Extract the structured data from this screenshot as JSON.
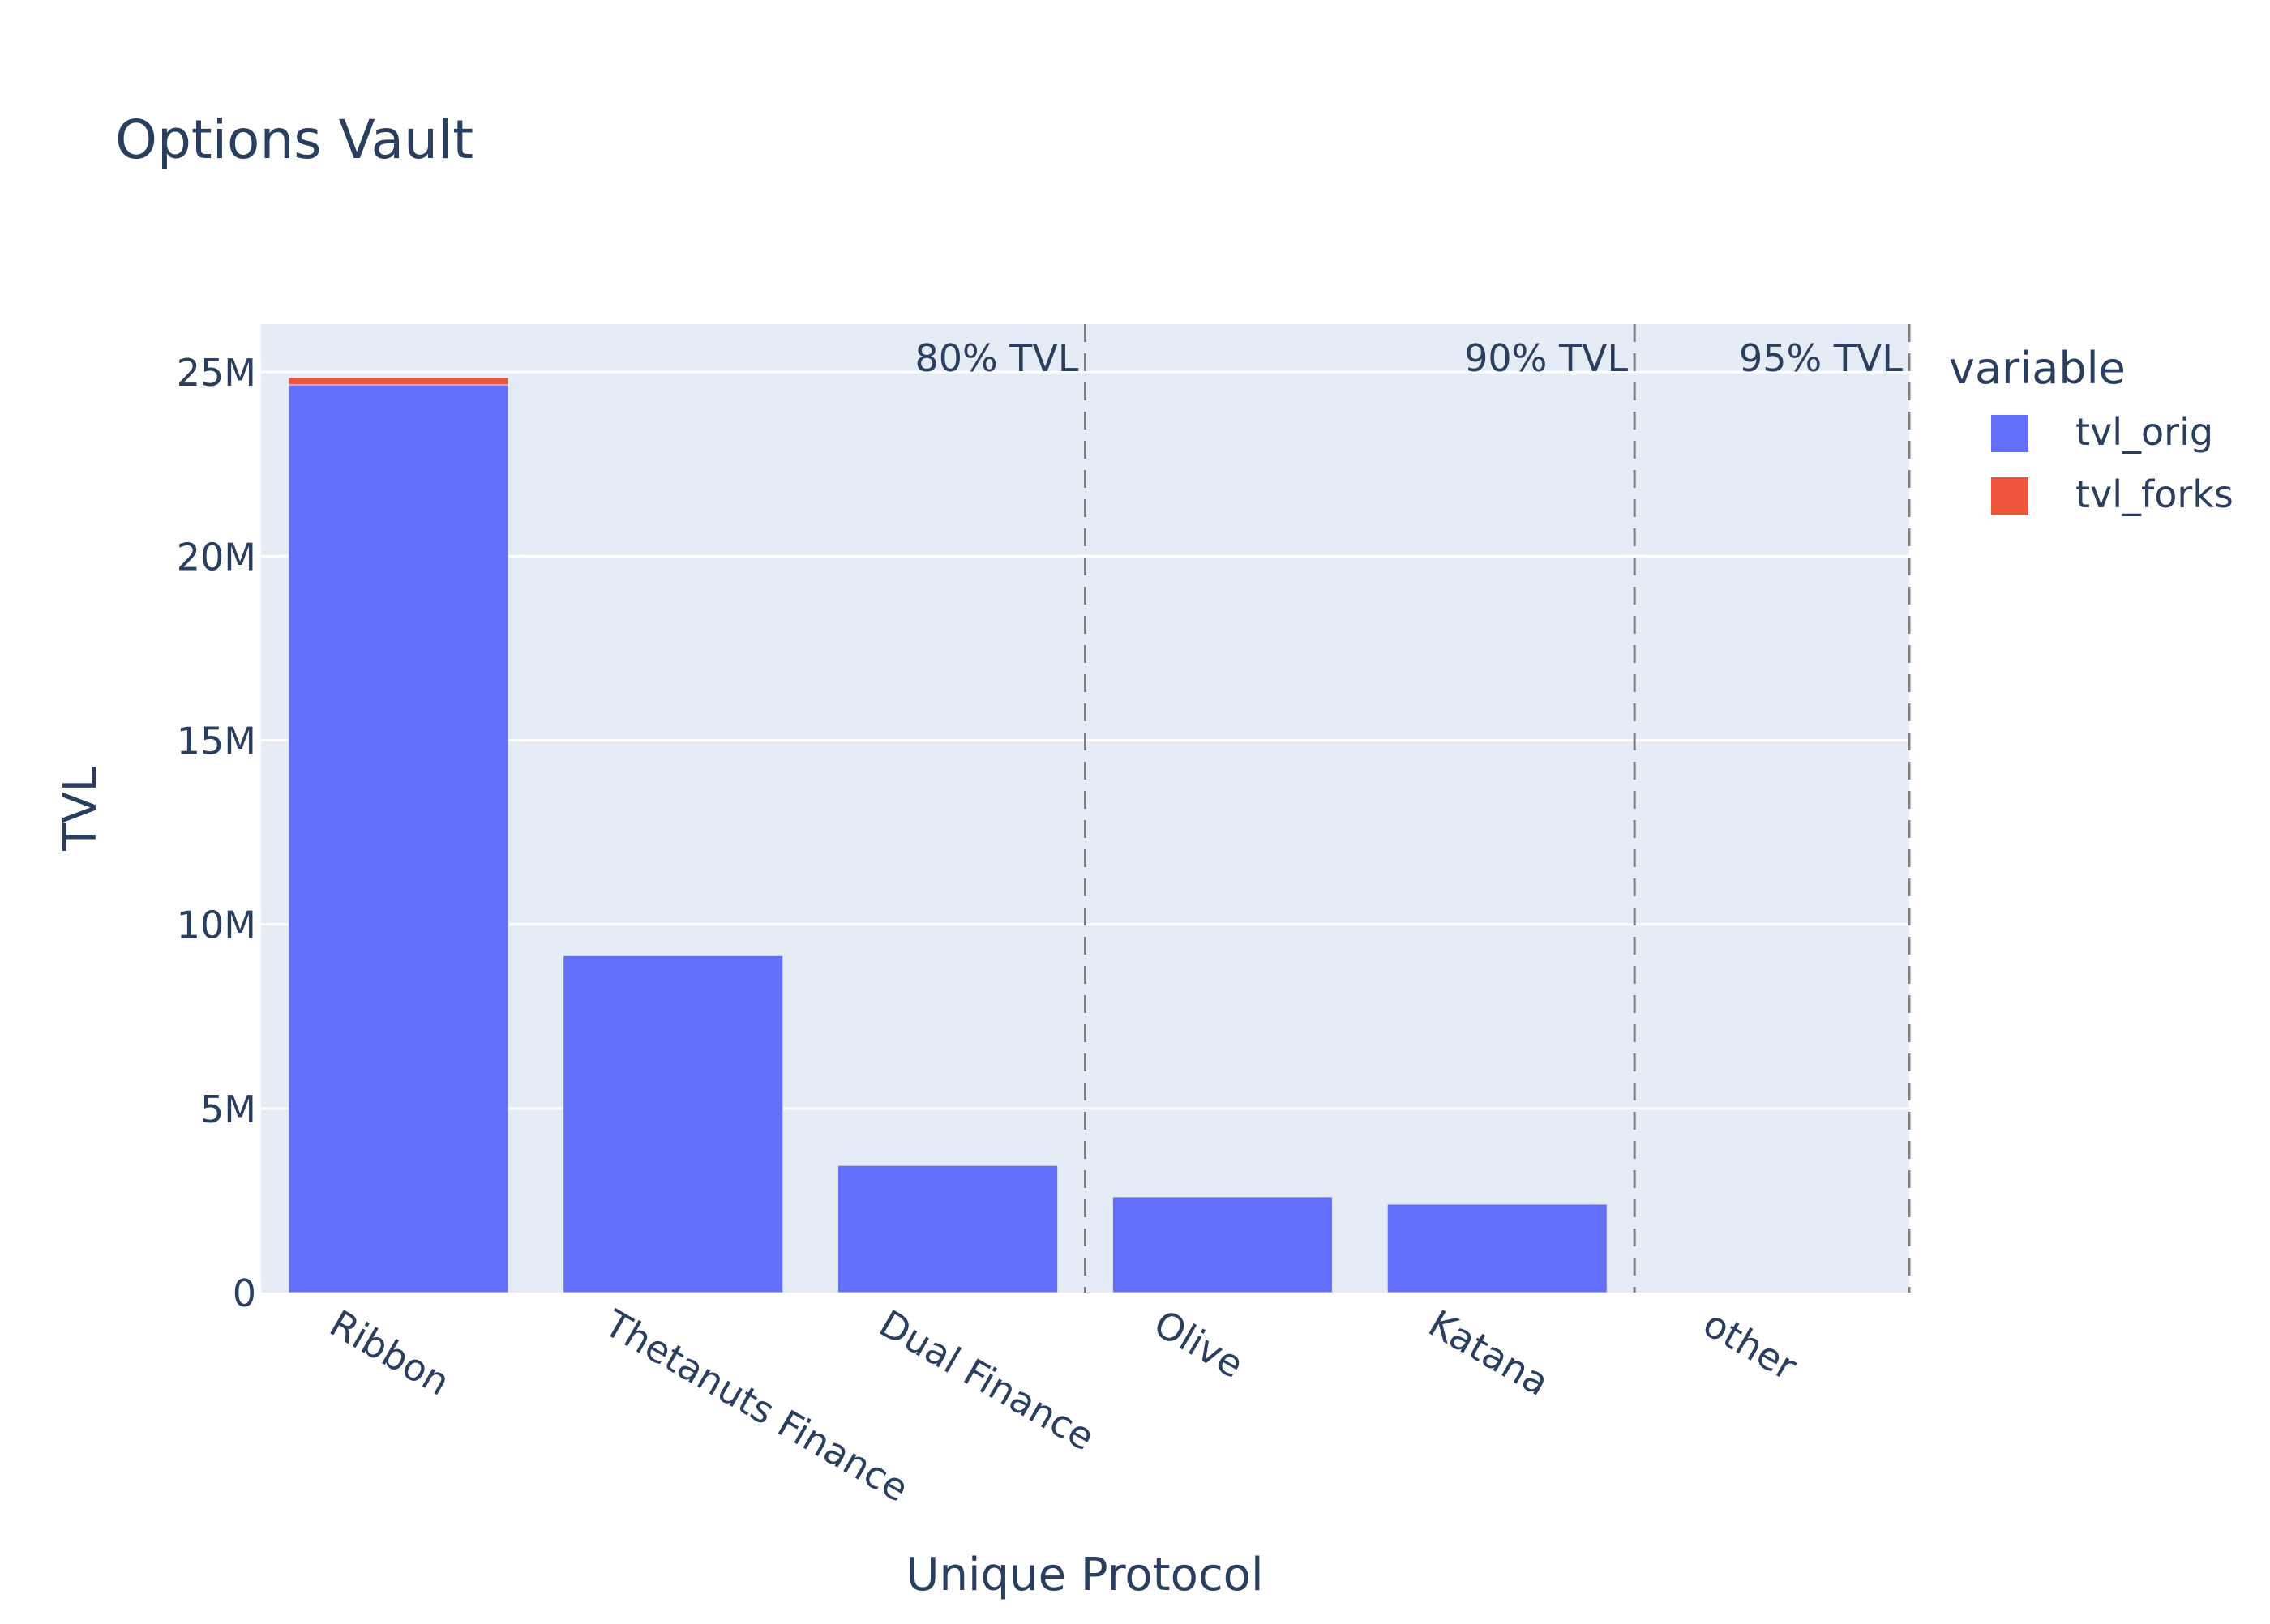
{
  "chart_data": {
    "type": "bar",
    "barmode": "stack",
    "title": "Options Vault",
    "xlabel": "Unique Protocol",
    "ylabel": "TVL",
    "categories": [
      "Ribbon",
      "Thetanuts Finance",
      "Dual Finance",
      "Olive",
      "Katana",
      "other"
    ],
    "series": [
      {
        "name": "tvl_orig",
        "color": "#636efa",
        "values": [
          24650000,
          9150000,
          3450000,
          2600000,
          2400000,
          0
        ]
      },
      {
        "name": "tvl_forks",
        "color": "#ef553b",
        "values": [
          200000,
          0,
          0,
          0,
          0,
          0
        ]
      }
    ],
    "ylim": [
      0,
      26300000
    ],
    "yticks": [
      0,
      5000000,
      10000000,
      15000000,
      20000000,
      25000000
    ],
    "ytick_labels": [
      "0",
      "5M",
      "10M",
      "15M",
      "20M",
      "25M"
    ],
    "grid": true,
    "legend_title": "variable",
    "legend_position": "right",
    "annotations": [
      {
        "label": "80% TVL",
        "after_category_index": 2
      },
      {
        "label": "90% TVL",
        "after_category_index": 4
      },
      {
        "label": "95% TVL",
        "after_category_index": 5
      }
    ],
    "colors": {
      "plot_background": "#e5ecf6",
      "gridline": "#ffffff",
      "text": "#2a3f5f",
      "vline": "#7f7f7f"
    }
  }
}
